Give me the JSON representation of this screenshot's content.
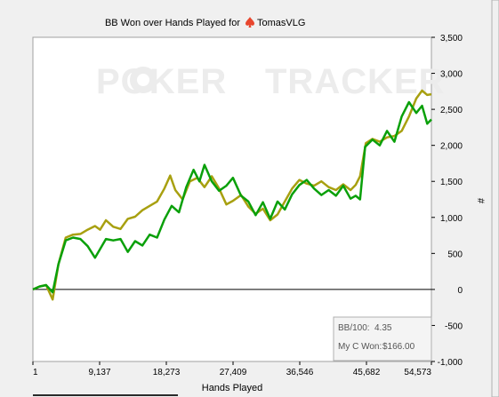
{
  "title_prefix": "BB Won over Hands Played for",
  "player_name": "TomasVLG",
  "watermark": {
    "left": "POKER",
    "right": "TRACKER",
    "icon": "poker-chip-icon"
  },
  "stats": {
    "bb100_label": "BB/100:",
    "bb100_value": "4.35",
    "won_label": "My C Won:",
    "won_value": "$166.00"
  },
  "colors": {
    "won": "#0aa00a",
    "allin_ev": "#a8a010",
    "background": "#ffffff",
    "window": "#f0f0f0"
  },
  "chart_data": {
    "type": "line",
    "title": "BB Won over Hands Played for TomasVLG",
    "xlabel": "Hands Played",
    "ylabel": "#",
    "xlim": [
      1,
      54573
    ],
    "ylim": [
      -1000,
      3500
    ],
    "x_ticks": [
      {
        "value": 1,
        "label": "1"
      },
      {
        "value": 9137,
        "label": "9,137"
      },
      {
        "value": 18273,
        "label": "18,273"
      },
      {
        "value": 27409,
        "label": "27,409"
      },
      {
        "value": 36546,
        "label": "36,546"
      },
      {
        "value": 45682,
        "label": "45,682"
      },
      {
        "value": 54573,
        "label": "54,573"
      }
    ],
    "y_ticks": [
      {
        "value": 3500,
        "label": "3,500"
      },
      {
        "value": 3000,
        "label": "3,000"
      },
      {
        "value": 2500,
        "label": "2,500"
      },
      {
        "value": 2000,
        "label": "2,000"
      },
      {
        "value": 1500,
        "label": "1,500"
      },
      {
        "value": 1000,
        "label": "1,000"
      },
      {
        "value": 500,
        "label": "500"
      },
      {
        "value": 0,
        "label": "0"
      },
      {
        "value": -500,
        "label": "-500"
      },
      {
        "value": -1000,
        "label": "-1,000"
      }
    ],
    "grid": false,
    "series": [
      {
        "color": "#a8a010",
        "points": [
          [
            1,
            0
          ],
          [
            900,
            40
          ],
          [
            1800,
            60
          ],
          [
            2700,
            -140
          ],
          [
            3500,
            350
          ],
          [
            4500,
            720
          ],
          [
            5500,
            760
          ],
          [
            6500,
            770
          ],
          [
            7500,
            830
          ],
          [
            8500,
            880
          ],
          [
            9200,
            830
          ],
          [
            10000,
            960
          ],
          [
            11000,
            870
          ],
          [
            12000,
            840
          ],
          [
            13000,
            980
          ],
          [
            14000,
            1010
          ],
          [
            15000,
            1100
          ],
          [
            16000,
            1160
          ],
          [
            17000,
            1220
          ],
          [
            18000,
            1400
          ],
          [
            18800,
            1580
          ],
          [
            19500,
            1380
          ],
          [
            20500,
            1250
          ],
          [
            21500,
            1500
          ],
          [
            22500,
            1550
          ],
          [
            23500,
            1420
          ],
          [
            24500,
            1570
          ],
          [
            25500,
            1400
          ],
          [
            26500,
            1180
          ],
          [
            27400,
            1230
          ],
          [
            28500,
            1310
          ],
          [
            29500,
            1150
          ],
          [
            30500,
            1050
          ],
          [
            31500,
            1120
          ],
          [
            32500,
            960
          ],
          [
            33500,
            1040
          ],
          [
            34500,
            1220
          ],
          [
            35500,
            1400
          ],
          [
            36500,
            1520
          ],
          [
            37500,
            1470
          ],
          [
            38500,
            1440
          ],
          [
            39500,
            1500
          ],
          [
            40500,
            1420
          ],
          [
            41500,
            1380
          ],
          [
            42500,
            1460
          ],
          [
            43500,
            1380
          ],
          [
            44200,
            1450
          ],
          [
            44800,
            1570
          ],
          [
            45600,
            2030
          ],
          [
            46500,
            2090
          ],
          [
            47500,
            2050
          ],
          [
            48500,
            2110
          ],
          [
            49500,
            2130
          ],
          [
            50500,
            2200
          ],
          [
            51500,
            2400
          ],
          [
            52500,
            2650
          ],
          [
            53300,
            2760
          ],
          [
            54000,
            2700
          ],
          [
            54573,
            2710
          ]
        ]
      },
      {
        "color": "#0aa00a",
        "points": [
          [
            1,
            0
          ],
          [
            900,
            40
          ],
          [
            1800,
            60
          ],
          [
            2700,
            -40
          ],
          [
            3500,
            350
          ],
          [
            4500,
            680
          ],
          [
            5500,
            720
          ],
          [
            6500,
            700
          ],
          [
            7500,
            600
          ],
          [
            8500,
            440
          ],
          [
            9200,
            560
          ],
          [
            10000,
            700
          ],
          [
            11000,
            680
          ],
          [
            12000,
            700
          ],
          [
            13000,
            520
          ],
          [
            14000,
            670
          ],
          [
            15000,
            610
          ],
          [
            16000,
            760
          ],
          [
            17000,
            720
          ],
          [
            18000,
            970
          ],
          [
            19000,
            1160
          ],
          [
            20000,
            1070
          ],
          [
            21000,
            1420
          ],
          [
            22000,
            1660
          ],
          [
            22800,
            1500
          ],
          [
            23500,
            1730
          ],
          [
            24500,
            1500
          ],
          [
            25500,
            1370
          ],
          [
            26500,
            1440
          ],
          [
            27400,
            1550
          ],
          [
            28500,
            1300
          ],
          [
            29500,
            1220
          ],
          [
            30500,
            1030
          ],
          [
            31500,
            1210
          ],
          [
            32500,
            980
          ],
          [
            33500,
            1220
          ],
          [
            34500,
            1110
          ],
          [
            35500,
            1320
          ],
          [
            36500,
            1450
          ],
          [
            37500,
            1520
          ],
          [
            38500,
            1400
          ],
          [
            39500,
            1310
          ],
          [
            40500,
            1380
          ],
          [
            41500,
            1300
          ],
          [
            42500,
            1440
          ],
          [
            43500,
            1260
          ],
          [
            44200,
            1300
          ],
          [
            44800,
            1250
          ],
          [
            45500,
            1980
          ],
          [
            46500,
            2080
          ],
          [
            47500,
            2000
          ],
          [
            48500,
            2200
          ],
          [
            49500,
            2050
          ],
          [
            50500,
            2400
          ],
          [
            51500,
            2600
          ],
          [
            52500,
            2450
          ],
          [
            53300,
            2550
          ],
          [
            54000,
            2300
          ],
          [
            54573,
            2360
          ]
        ]
      }
    ]
  }
}
